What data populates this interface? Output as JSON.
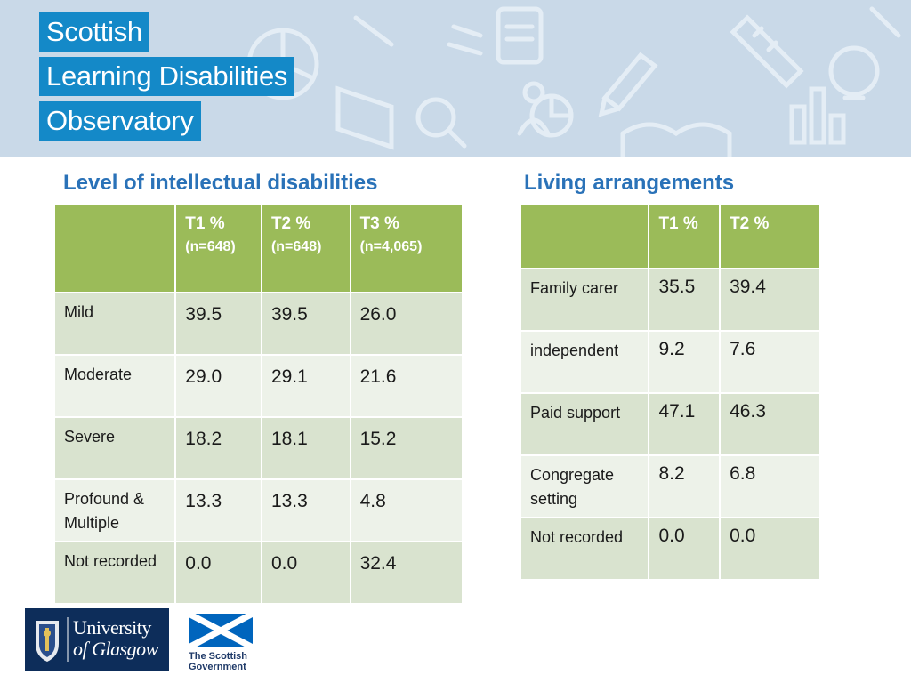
{
  "header": {
    "brand_lines": [
      "Scottish",
      "Learning Disabilities",
      "Observatory"
    ]
  },
  "left_table": {
    "title": "Level of  intellectual disabilities",
    "columns": [
      {
        "label": "T1 %",
        "sub": "(n=648)"
      },
      {
        "label": "T2 %",
        "sub": "(n=648)"
      },
      {
        "label": "T3 %",
        "sub": "(n=4,065)"
      }
    ],
    "rows": [
      {
        "label": "Mild",
        "values": [
          "39.5",
          "39.5",
          "26.0"
        ]
      },
      {
        "label": "Moderate",
        "values": [
          "29.0",
          "29.1",
          "21.6"
        ]
      },
      {
        "label": "Severe",
        "values": [
          "18.2",
          "18.1",
          "15.2"
        ]
      },
      {
        "label": "Profound & Multiple",
        "values": [
          "13.3",
          "13.3",
          "4.8"
        ]
      },
      {
        "label": "Not recorded",
        "values": [
          "0.0",
          "0.0",
          "32.4"
        ]
      }
    ]
  },
  "right_table": {
    "title": "Living arrangements",
    "columns": [
      {
        "label": "T1 %"
      },
      {
        "label": "T2 %"
      }
    ],
    "rows": [
      {
        "label": "Family carer",
        "values": [
          "35.5",
          "39.4"
        ]
      },
      {
        "label": "independent",
        "values": [
          "9.2",
          "7.6"
        ]
      },
      {
        "label": "Paid support",
        "values": [
          "47.1",
          "46.3"
        ]
      },
      {
        "label": "Congregate setting",
        "values": [
          "8.2",
          "6.8"
        ]
      },
      {
        "label": "Not recorded",
        "values": [
          "0.0",
          "0.0"
        ]
      }
    ]
  },
  "footer": {
    "university_logo": {
      "line1": "University",
      "line2": "of Glasgow"
    },
    "gov_logo": {
      "line1": "The Scottish",
      "line2": "Government"
    }
  },
  "colors": {
    "brand_blue": "#1489c8",
    "title_blue": "#2a72b8",
    "header_green": "#9bbb59",
    "row_green": "#d9e3cf",
    "row_light": "#edf2e9",
    "banner_bg": "#c9d9e8",
    "glasgow_navy": "#0d2d5a",
    "saltire_blue": "#0065bd"
  }
}
